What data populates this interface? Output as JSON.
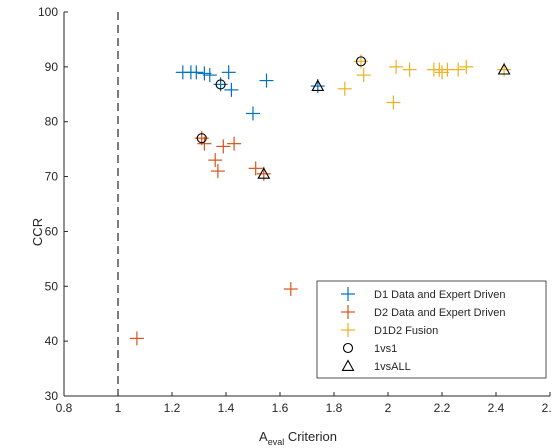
{
  "chart_data": {
    "type": "scatter",
    "xlabel_main": "A",
    "xlabel_sub": "eval",
    "xlabel_rest": " Criterion",
    "ylabel": "CCR",
    "xlim": [
      0.8,
      2.6
    ],
    "ylim": [
      30,
      100
    ],
    "xticks": [
      0.8,
      1,
      1.2,
      1.4,
      1.6,
      1.8,
      2,
      2.2,
      2.4,
      2.6
    ],
    "xtick_labels": [
      "0.8",
      "1",
      "1.2",
      "1.4",
      "1.6",
      "1.8",
      "2",
      "2.2",
      "2.4",
      "2.6"
    ],
    "yticks": [
      30,
      40,
      50,
      60,
      70,
      80,
      90,
      100
    ],
    "ytick_labels": [
      "30",
      "40",
      "50",
      "60",
      "70",
      "80",
      "90",
      "100"
    ],
    "grid": false,
    "reference_line": {
      "x": 1,
      "style": "dashed"
    },
    "legend_position": "bottom-right",
    "series": [
      {
        "name": "D1 Data and Expert Driven",
        "marker": "plus",
        "color": "#0072BD",
        "points": [
          [
            1.24,
            89
          ],
          [
            1.27,
            89
          ],
          [
            1.29,
            89
          ],
          [
            1.32,
            88.8
          ],
          [
            1.34,
            88.5
          ],
          [
            1.38,
            86.8
          ],
          [
            1.41,
            89
          ],
          [
            1.42,
            85.8
          ],
          [
            1.5,
            81.5
          ],
          [
            1.55,
            87.5
          ],
          [
            1.74,
            86.5
          ]
        ]
      },
      {
        "name": "D2 Data and Expert Driven",
        "marker": "plus",
        "color": "#D95319",
        "points": [
          [
            1.07,
            40.5
          ],
          [
            1.31,
            77
          ],
          [
            1.32,
            76
          ],
          [
            1.36,
            73
          ],
          [
            1.37,
            71
          ],
          [
            1.39,
            75.5
          ],
          [
            1.43,
            76
          ],
          [
            1.51,
            71.5
          ],
          [
            1.54,
            70.5
          ],
          [
            1.64,
            49.5
          ]
        ]
      },
      {
        "name": "D1D2 Fusion",
        "marker": "plus",
        "color": "#EDB120",
        "points": [
          [
            1.84,
            86
          ],
          [
            1.9,
            91
          ],
          [
            1.91,
            88.5
          ],
          [
            2.02,
            83.5
          ],
          [
            2.03,
            90
          ],
          [
            2.08,
            89.5
          ],
          [
            2.17,
            89.5
          ],
          [
            2.19,
            89.5
          ],
          [
            2.2,
            89
          ],
          [
            2.22,
            89.5
          ],
          [
            2.26,
            89.5
          ],
          [
            2.29,
            90
          ],
          [
            2.43,
            89.5
          ]
        ]
      },
      {
        "name": "1vs1",
        "marker": "circle",
        "color": "#000000",
        "points": [
          [
            1.38,
            86.8
          ],
          [
            1.31,
            77
          ],
          [
            1.9,
            91
          ]
        ]
      },
      {
        "name": "1vsALL",
        "marker": "triangle",
        "color": "#000000",
        "points": [
          [
            1.74,
            86.5
          ],
          [
            1.54,
            70.5
          ],
          [
            2.43,
            89.5
          ]
        ]
      }
    ]
  }
}
